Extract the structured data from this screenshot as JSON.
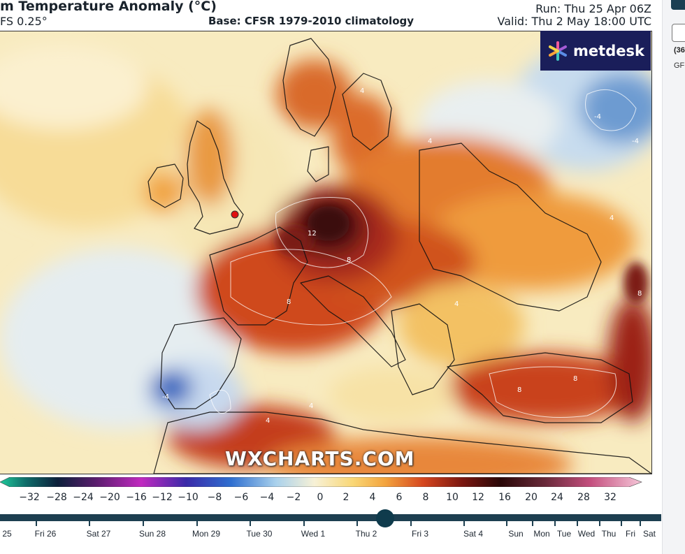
{
  "header": {
    "title": "m Temperature Anomaly (°C)",
    "model": "FS 0.25°",
    "base": "Base: CFSR 1979-2010 climatology",
    "run": "Run: Thu 25 Apr 06Z",
    "valid": "Valid: Thu 2 May 18:00 UTC"
  },
  "logo": {
    "text": "metdesk"
  },
  "watermark": "WXCHARTS.COM",
  "map": {
    "labels": [
      "12",
      "8",
      "8",
      "8",
      "8",
      "8",
      "4",
      "4",
      "4",
      "4",
      "4",
      "4",
      "-4",
      "-4",
      "-4"
    ],
    "colors": {
      "cold": "#2b61b8",
      "cool": "#dbe8f2",
      "neutral": "#fbf4d8",
      "warm": "#f1a443",
      "hot": "#c63a17",
      "extreme": "#4a1010"
    }
  },
  "colorbar": {
    "ticks": [
      "−32",
      "−28",
      "−24",
      "−20",
      "−16",
      "−12",
      "−10",
      "−8",
      "−6",
      "−4",
      "−2",
      "0",
      "2",
      "4",
      "6",
      "8",
      "10",
      "12",
      "16",
      "20",
      "24",
      "28",
      "32"
    ]
  },
  "timeline": {
    "days": [
      "25",
      "Fri 26",
      "Sat 27",
      "Sun 28",
      "Mon 29",
      "Tue 30",
      "Wed 1",
      "Thu 2",
      "Fri 3",
      "Sat 4",
      "Sun",
      "Mon",
      "Tue",
      "Wed",
      "Thu",
      "Fri",
      "Sat"
    ],
    "selected": "Thu 2"
  },
  "side": {
    "a": "(36",
    "b": "GF"
  }
}
